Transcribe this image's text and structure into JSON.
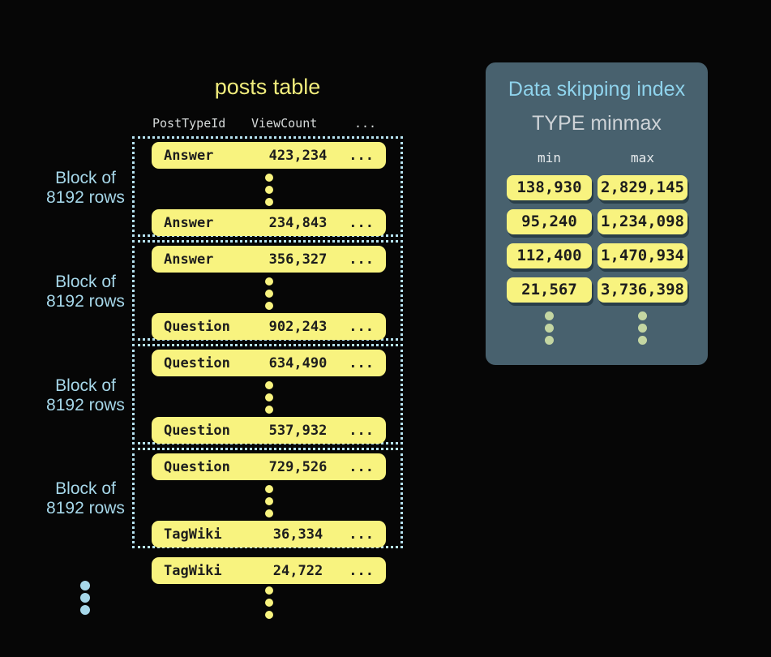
{
  "colors": {
    "background": "#060606",
    "row_yellow": "#f8f37f",
    "row_text": "#1d1d1d",
    "block_border_blue": "#b6e2f0",
    "label_blue": "#a6d7e9",
    "panel_background": "#48616e",
    "panel_title_blue": "#8fd3ec",
    "panel_subtitle_gray": "#ced3d7",
    "index_dots_green": "#c4d6a2",
    "posts_title_yellow": "#f0ec7c"
  },
  "posts_table": {
    "title": "posts table",
    "headers": {
      "col1": "PostTypeId",
      "col2": "ViewCount",
      "col3": "..."
    },
    "block_label_line1": "Block of",
    "block_label_line2": "8192 rows",
    "blocks": [
      {
        "rows": [
          {
            "type": "Answer",
            "count": "423,234",
            "more": "..."
          },
          {
            "type": "Answer",
            "count": "234,843",
            "more": "..."
          }
        ]
      },
      {
        "rows": [
          {
            "type": "Answer",
            "count": "356,327",
            "more": "..."
          },
          {
            "type": "Question",
            "count": "902,243",
            "more": "..."
          }
        ]
      },
      {
        "rows": [
          {
            "type": "Question",
            "count": "634,490",
            "more": "..."
          },
          {
            "type": "Question",
            "count": "537,932",
            "more": "..."
          }
        ]
      },
      {
        "rows": [
          {
            "type": "Question",
            "count": "729,526",
            "more": "..."
          },
          {
            "type": "TagWiki",
            "count": "36,334",
            "more": "..."
          }
        ]
      }
    ],
    "overflow_row": {
      "type": "TagWiki",
      "count": "24,722",
      "more": "..."
    }
  },
  "index_panel": {
    "title": "Data skipping index",
    "subtitle": "TYPE minmax",
    "min_header": "min",
    "max_header": "max",
    "rows": [
      {
        "min": "138,930",
        "max": "2,829,145"
      },
      {
        "min": "95,240",
        "max": "1,234,098"
      },
      {
        "min": "112,400",
        "max": "1,470,934"
      },
      {
        "min": "21,567",
        "max": "3,736,398"
      }
    ]
  }
}
